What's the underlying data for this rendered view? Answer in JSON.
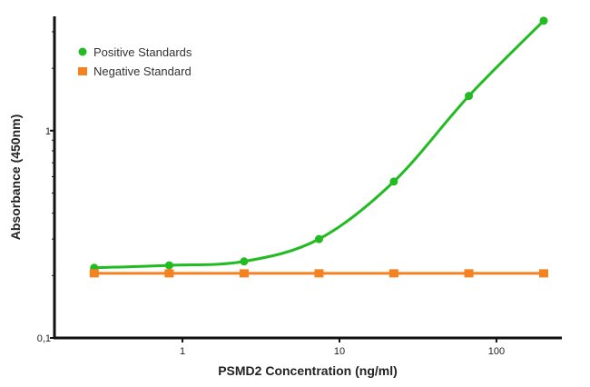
{
  "chart_data": {
    "type": "line",
    "title": "",
    "xlabel": "PSMD2 Concentration (ng/ml)",
    "ylabel": "Absorbance (450nm)",
    "xscale": "log",
    "yscale": "log",
    "xlim": [
      0.153,
      261
    ],
    "ylim": [
      0.1,
      3.56
    ],
    "xticks": [
      1,
      10,
      100
    ],
    "xtick_labels": [
      "1",
      "10",
      "100"
    ],
    "yticks": [
      0.1,
      1
    ],
    "ytick_labels": [
      "0,1",
      "1"
    ],
    "grid": false,
    "legend_position": "top-left",
    "x": [
      0.274,
      0.823,
      2.47,
      7.41,
      22.2,
      66.7,
      200
    ],
    "series": [
      {
        "name": "Positive Standards",
        "marker": "circle",
        "color": "#22bb22",
        "values": [
          0.218,
          0.224,
          0.234,
          0.3,
          0.568,
          1.47,
          3.39
        ]
      },
      {
        "name": "Negative Standard",
        "marker": "square",
        "color": "#f58220",
        "values": [
          0.205,
          0.205,
          0.205,
          0.205,
          0.205,
          0.205,
          0.205
        ]
      }
    ]
  }
}
